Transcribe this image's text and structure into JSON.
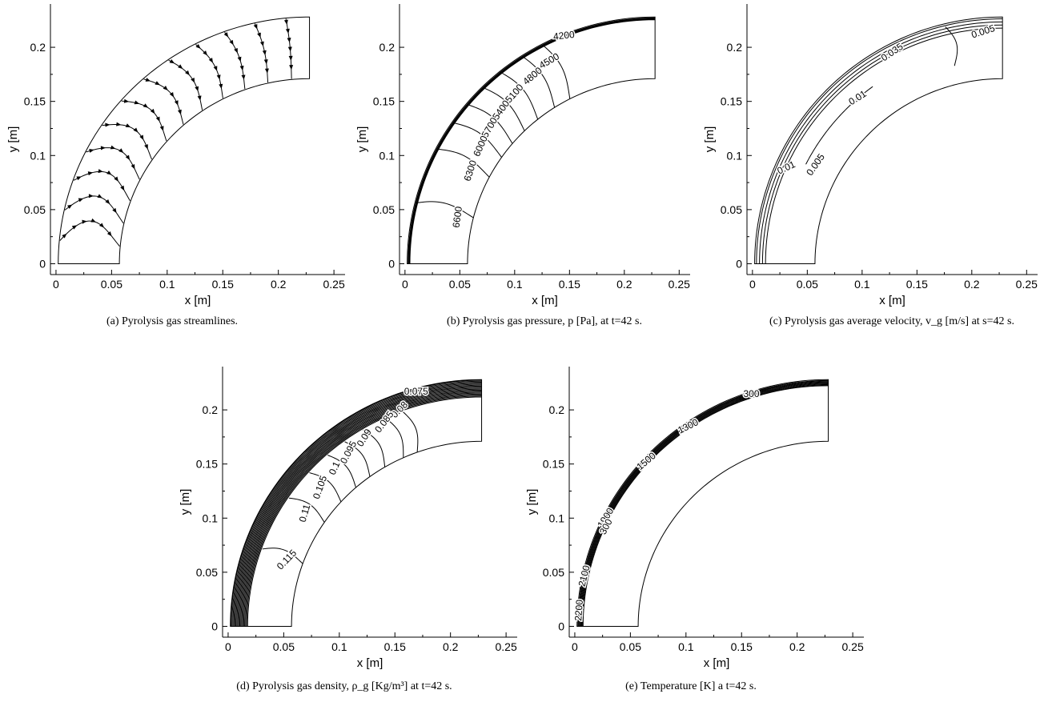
{
  "chart_data": [
    {
      "type": "contour",
      "panel": "a",
      "caption": "(a)  Pyrolysis gas streamlines.",
      "xlabel": "x [m]",
      "ylabel": "y [m]",
      "xlim": [
        -0.005,
        0.26
      ],
      "ylim": [
        -0.01,
        0.24
      ],
      "x_ticks": [
        "0",
        "0.05",
        "0.1",
        "0.15",
        "0.2",
        "0.25"
      ],
      "y_ticks": [
        "0",
        "0.05",
        "0.1",
        "0.15",
        "0.2"
      ],
      "streamline_fractions": [
        0.06,
        0.14,
        0.22,
        0.3,
        0.38,
        0.46,
        0.54,
        0.62,
        0.7,
        0.78,
        0.86,
        0.94
      ],
      "labels": []
    },
    {
      "type": "contour",
      "panel": "b",
      "caption": "(b)  Pyrolysis gas pressure, p [Pa], at t=42 s.",
      "xlabel": "x [m]",
      "ylabel": "y [m]",
      "xlim": [
        -0.005,
        0.26
      ],
      "ylim": [
        -0.01,
        0.24
      ],
      "x_ticks": [
        "0",
        "0.05",
        "0.1",
        "0.15",
        "0.2",
        "0.25"
      ],
      "y_ticks": [
        "0",
        "0.05",
        "0.1",
        "0.15",
        "0.2"
      ],
      "labels": [
        {
          "text": "4200",
          "value": 4200
        },
        {
          "text": "4500",
          "value": 4500
        },
        {
          "text": "4800",
          "value": 4800
        },
        {
          "text": "5100",
          "value": 5100
        },
        {
          "text": "5400",
          "value": 5400
        },
        {
          "text": "5700",
          "value": 5700
        },
        {
          "text": "6000",
          "value": 6000
        },
        {
          "text": "6300",
          "value": 6300
        },
        {
          "text": "6600",
          "value": 6600
        }
      ]
    },
    {
      "type": "contour",
      "panel": "c",
      "caption": "(c)  Pyrolysis gas average velocity, v_g [m/s] at s=42 s.",
      "xlabel": "x [m]",
      "ylabel": "y [m]",
      "xlim": [
        -0.005,
        0.26
      ],
      "ylim": [
        -0.01,
        0.24
      ],
      "x_ticks": [
        "0",
        "0.05",
        "0.1",
        "0.15",
        "0.2",
        "0.25"
      ],
      "y_ticks": [
        "0",
        "0.05",
        "0.1",
        "0.15",
        "0.2"
      ],
      "labels": [
        {
          "text": "0.035",
          "value": 0.035
        },
        {
          "text": "0.01",
          "value": 0.01
        },
        {
          "text": "0.005",
          "value": 0.005
        },
        {
          "text": "0.01",
          "value": 0.01
        },
        {
          "text": "0.005",
          "value": 0.005
        }
      ]
    },
    {
      "type": "contour",
      "panel": "d",
      "caption": "(d)  Pyrolysis gas density, ρ_g [Kg/m³] at t=42 s.",
      "xlabel": "x [m]",
      "ylabel": "y [m]",
      "xlim": [
        -0.005,
        0.26
      ],
      "ylim": [
        -0.01,
        0.24
      ],
      "x_ticks": [
        "0",
        "0.05",
        "0.1",
        "0.15",
        "0.2",
        "0.25"
      ],
      "y_ticks": [
        "0",
        "0.05",
        "0.1",
        "0.15",
        "0.2"
      ],
      "labels": [
        {
          "text": "0.075",
          "value": 0.075
        },
        {
          "text": "0.08",
          "value": 0.08
        },
        {
          "text": "0.085",
          "value": 0.085
        },
        {
          "text": "0.09",
          "value": 0.09
        },
        {
          "text": "0.095",
          "value": 0.095
        },
        {
          "text": "0.1",
          "value": 0.1
        },
        {
          "text": "0.105",
          "value": 0.105
        },
        {
          "text": "0.11",
          "value": 0.11
        },
        {
          "text": "0.115",
          "value": 0.115
        }
      ]
    },
    {
      "type": "contour",
      "panel": "e",
      "caption": "(e)  Temperature [K] a t=42 s.",
      "xlabel": "x [m]",
      "ylabel": "y [m]",
      "xlim": [
        -0.005,
        0.26
      ],
      "ylim": [
        -0.01,
        0.24
      ],
      "x_ticks": [
        "0",
        "0.05",
        "0.1",
        "0.15",
        "0.2",
        "0.25"
      ],
      "y_ticks": [
        "0",
        "0.05",
        "0.1",
        "0.15",
        "0.2"
      ],
      "labels": [
        {
          "text": "300",
          "value": 300
        },
        {
          "text": "1300",
          "value": 1300
        },
        {
          "text": "1500",
          "value": 1500
        },
        {
          "text": "1900",
          "value": 1900
        },
        {
          "text": "300",
          "value": 300
        },
        {
          "text": "2100",
          "value": 2100
        },
        {
          "text": "2200",
          "value": 2200
        }
      ]
    }
  ]
}
